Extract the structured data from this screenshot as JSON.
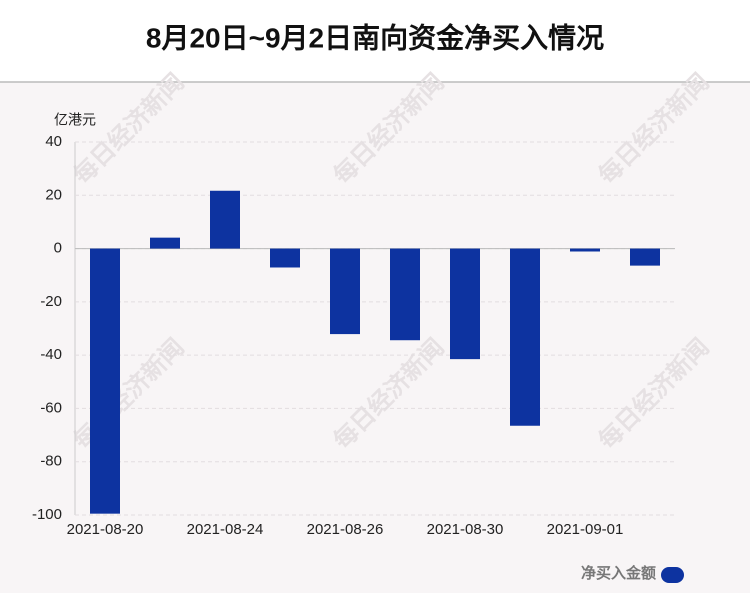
{
  "chart_data": {
    "type": "bar",
    "title": "8月20日~9月2日南向资金净买入情况",
    "y_axis_label": "亿港元",
    "watermark": "每日经济新闻",
    "categories": [
      "2021-08-20",
      null,
      "2021-08-24",
      null,
      "2021-08-26",
      null,
      "2021-08-30",
      null,
      "2021-09-01",
      null
    ],
    "series": [
      {
        "name": "净买入金额",
        "color": "#0d33a0",
        "values": [
          -99.5,
          4.1,
          21.7,
          -7.1,
          -32.1,
          -34.4,
          -41.5,
          -66.5,
          -1.1,
          -6.4
        ]
      }
    ],
    "ylim": [
      -100,
      40
    ],
    "yticks": [
      -100,
      -80,
      -60,
      -40,
      -20,
      0,
      20,
      40
    ],
    "grid": true
  }
}
